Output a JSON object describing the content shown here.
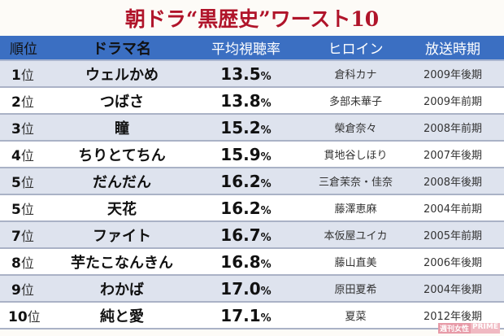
{
  "title": "朝ドラ“黒歴史”ワースト10",
  "colors": {
    "title": "#b0142a",
    "header_bg": "#3b6fc2",
    "row_alt_bg": "#dee3ee",
    "row_bg": "#ffffff"
  },
  "table": {
    "headers": [
      "順位",
      "ドラマ名",
      "平均視聴率",
      "ヒロイン",
      "放送時期"
    ],
    "rank_suffix": "位",
    "percent_suffix": "%",
    "rows": [
      {
        "rank": "1",
        "drama": "ウェルかめ",
        "rating": "13.5",
        "heroine": "倉科カナ",
        "period": "2009年後期"
      },
      {
        "rank": "2",
        "drama": "つばさ",
        "rating": "13.8",
        "heroine": "多部未華子",
        "period": "2009年前期"
      },
      {
        "rank": "3",
        "drama": "瞳",
        "rating": "15.2",
        "heroine": "榮倉奈々",
        "period": "2008年前期"
      },
      {
        "rank": "4",
        "drama": "ちりとてちん",
        "rating": "15.9",
        "heroine": "貫地谷しほり",
        "period": "2007年後期"
      },
      {
        "rank": "5",
        "drama": "だんだん",
        "rating": "16.2",
        "heroine": "三倉茉奈・佳奈",
        "period": "2008年後期"
      },
      {
        "rank": "5",
        "drama": "天花",
        "rating": "16.2",
        "heroine": "藤澤恵麻",
        "period": "2004年前期"
      },
      {
        "rank": "7",
        "drama": "ファイト",
        "rating": "16.7",
        "heroine": "本仮屋ユイカ",
        "period": "2005年前期"
      },
      {
        "rank": "8",
        "drama": "芋たこなんきん",
        "rating": "16.8",
        "heroine": "藤山直美",
        "period": "2006年後期"
      },
      {
        "rank": "9",
        "drama": "わかば",
        "rating": "17.0",
        "heroine": "原田夏希",
        "period": "2004年後期"
      },
      {
        "rank": "10",
        "drama": "純と愛",
        "rating": "17.1",
        "heroine": "夏菜",
        "period": "2012年後期"
      }
    ]
  },
  "watermark": {
    "part1": "週刊女性",
    "part2": "PRIME"
  }
}
